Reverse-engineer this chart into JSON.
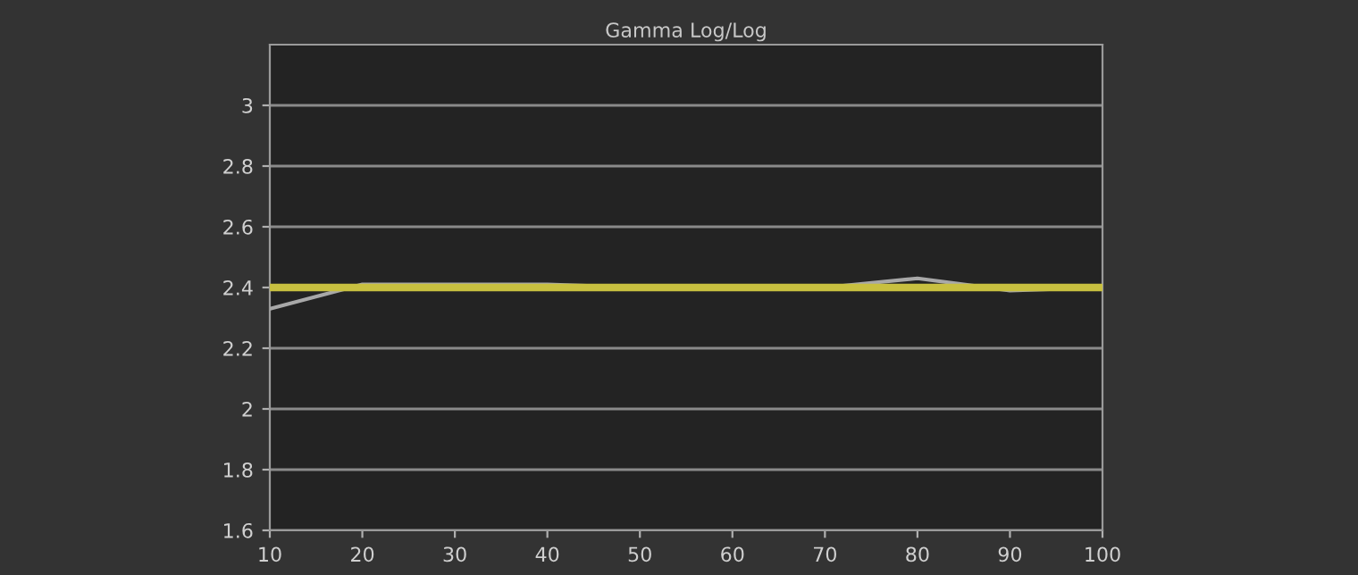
{
  "chart_data": {
    "type": "line",
    "title": "Gamma Log/Log",
    "x": [
      10,
      20,
      30,
      40,
      50,
      60,
      70,
      80,
      90,
      100
    ],
    "series": [
      {
        "color": "#a8a8a8",
        "values": [
          2.33,
          2.41,
          2.41,
          2.41,
          2.4,
          2.4,
          2.4,
          2.43,
          2.39,
          2.4
        ]
      },
      {
        "color": "#c8c040",
        "values": [
          2.4,
          2.4,
          2.4,
          2.4,
          2.4,
          2.4,
          2.4,
          2.4,
          2.4,
          2.4
        ]
      }
    ],
    "xlim": [
      10,
      100
    ],
    "xticks": [
      10,
      20,
      30,
      40,
      50,
      60,
      70,
      80,
      90,
      100
    ],
    "ylim": [
      1.6,
      3.2
    ],
    "yticks": [
      1.6,
      1.8,
      2,
      2.2,
      2.4,
      2.6,
      2.8,
      3
    ],
    "grid": "y",
    "marker": "none",
    "line_style": "solid"
  }
}
